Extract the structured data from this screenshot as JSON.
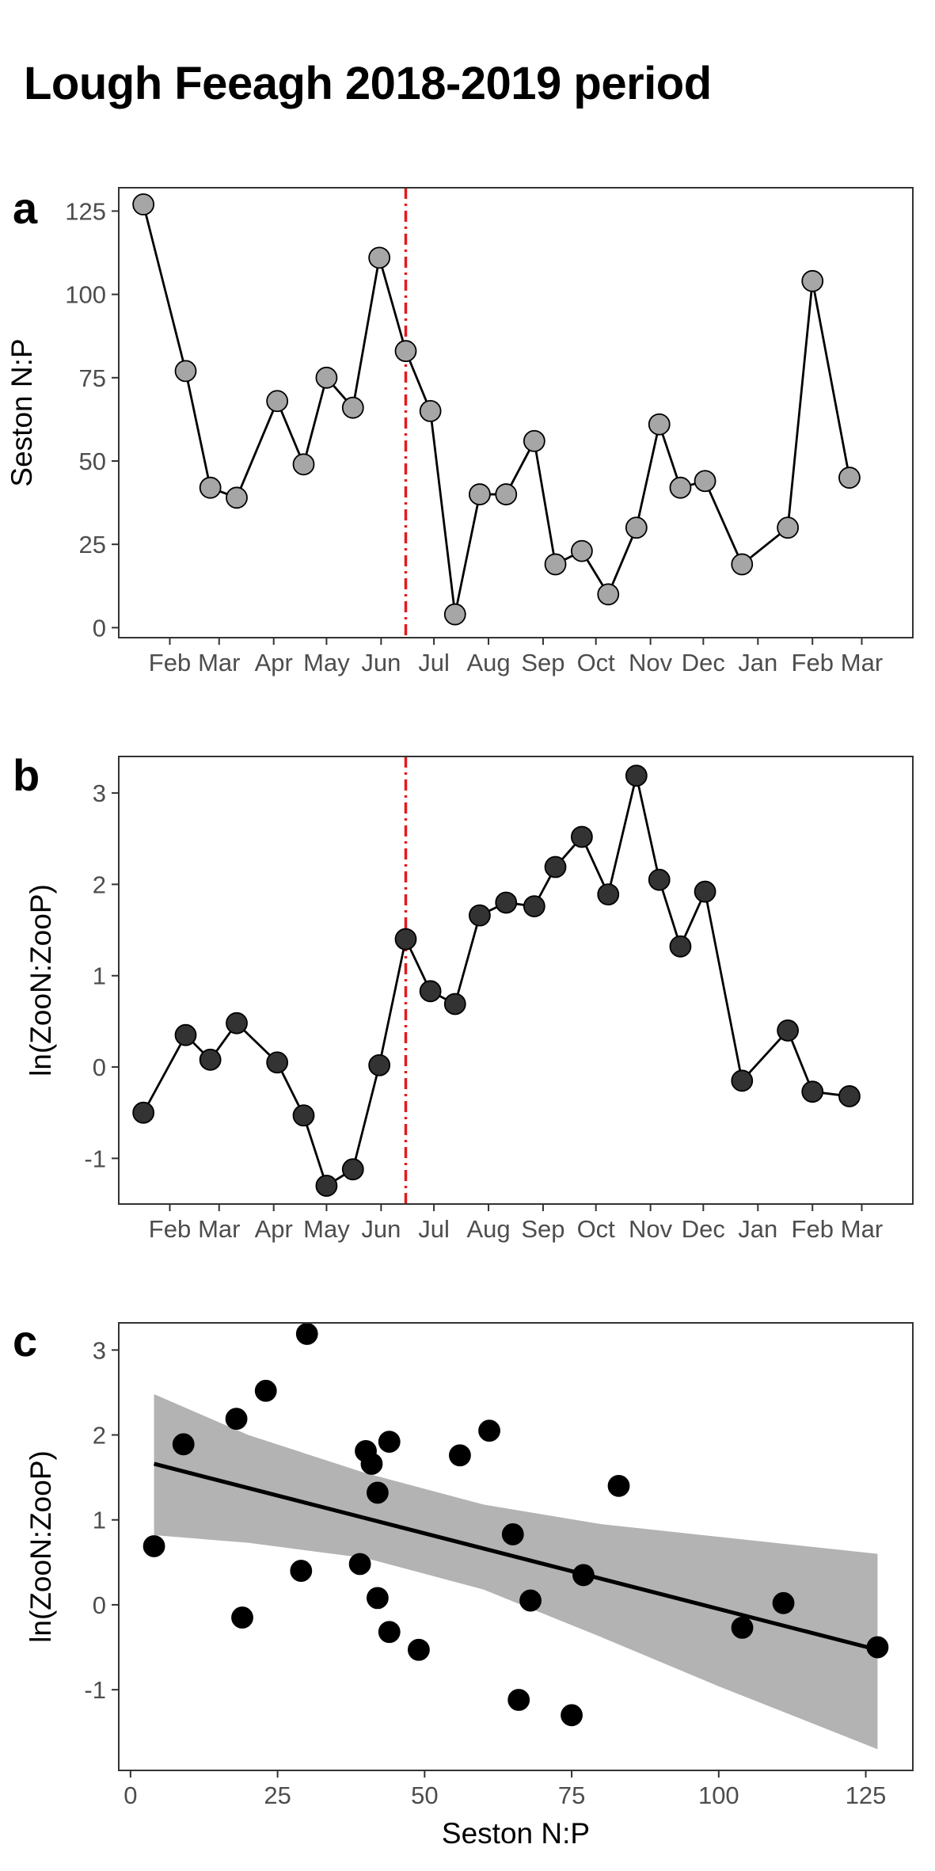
{
  "title": "Lough Feeagh 2018-2019 period",
  "chart_data": [
    {
      "panel": "a",
      "type": "line",
      "ylabel": "Seston N:P",
      "xlabel": "",
      "x_ticks": [
        "Feb",
        "Mar",
        "Apr",
        "May",
        "Jun",
        "Jul",
        "Aug",
        "Sep",
        "Oct",
        "Nov",
        "Dec",
        "Jan",
        "Feb",
        "Mar"
      ],
      "x_tick_dates": [
        "2018-02-01",
        "2018-03-01",
        "2018-04-01",
        "2018-05-01",
        "2018-06-01",
        "2018-07-01",
        "2018-08-01",
        "2018-09-01",
        "2018-10-01",
        "2018-11-01",
        "2018-12-01",
        "2019-01-01",
        "2019-02-01",
        "2019-03-01"
      ],
      "y_ticks": [
        0,
        25,
        50,
        75,
        100,
        125
      ],
      "xlim": [
        "2018-01-03",
        "2019-03-30"
      ],
      "ylim": [
        -3,
        132
      ],
      "vline": {
        "x": "2018-06-15",
        "color": "#e41a1c",
        "style": "dashdot"
      },
      "marker_color": "#a6a6a6",
      "points": [
        {
          "x": "2018-01-17",
          "y": 127
        },
        {
          "x": "2018-02-10",
          "y": 77
        },
        {
          "x": "2018-02-24",
          "y": 42
        },
        {
          "x": "2018-03-11",
          "y": 39
        },
        {
          "x": "2018-04-03",
          "y": 68
        },
        {
          "x": "2018-04-18",
          "y": 49
        },
        {
          "x": "2018-05-01",
          "y": 75
        },
        {
          "x": "2018-05-16",
          "y": 66
        },
        {
          "x": "2018-05-31",
          "y": 111
        },
        {
          "x": "2018-06-15",
          "y": 83
        },
        {
          "x": "2018-06-29",
          "y": 65
        },
        {
          "x": "2018-07-13",
          "y": 4
        },
        {
          "x": "2018-07-27",
          "y": 40
        },
        {
          "x": "2018-08-11",
          "y": 40
        },
        {
          "x": "2018-08-27",
          "y": 56
        },
        {
          "x": "2018-09-08",
          "y": 19
        },
        {
          "x": "2018-09-23",
          "y": 23
        },
        {
          "x": "2018-10-08",
          "y": 10
        },
        {
          "x": "2018-10-24",
          "y": 30
        },
        {
          "x": "2018-11-06",
          "y": 61
        },
        {
          "x": "2018-11-18",
          "y": 42
        },
        {
          "x": "2018-12-02",
          "y": 44
        },
        {
          "x": "2018-12-23",
          "y": 19
        },
        {
          "x": "2019-01-18",
          "y": 30
        },
        {
          "x": "2019-02-01",
          "y": 104
        },
        {
          "x": "2019-02-22",
          "y": 45
        }
      ]
    },
    {
      "panel": "b",
      "type": "line",
      "ylabel": "ln(ZooN:ZooP)",
      "xlabel": "",
      "x_ticks": [
        "Feb",
        "Mar",
        "Apr",
        "May",
        "Jun",
        "Jul",
        "Aug",
        "Sep",
        "Oct",
        "Nov",
        "Dec",
        "Jan",
        "Feb",
        "Mar"
      ],
      "x_tick_dates": [
        "2018-02-01",
        "2018-03-01",
        "2018-04-01",
        "2018-05-01",
        "2018-06-01",
        "2018-07-01",
        "2018-08-01",
        "2018-09-01",
        "2018-10-01",
        "2018-11-01",
        "2018-12-01",
        "2019-01-01",
        "2019-02-01",
        "2019-03-01"
      ],
      "y_ticks": [
        -1,
        0,
        1,
        2,
        3
      ],
      "xlim": [
        "2018-01-03",
        "2019-03-30"
      ],
      "ylim": [
        -1.5,
        3.4
      ],
      "vline": {
        "x": "2018-06-15",
        "color": "#e41a1c",
        "style": "dashdot"
      },
      "marker_color": "#333333",
      "points": [
        {
          "x": "2018-01-17",
          "y": -0.5
        },
        {
          "x": "2018-02-10",
          "y": 0.35
        },
        {
          "x": "2018-02-24",
          "y": 0.08
        },
        {
          "x": "2018-03-11",
          "y": 0.48
        },
        {
          "x": "2018-04-03",
          "y": 0.05
        },
        {
          "x": "2018-04-18",
          "y": -0.53
        },
        {
          "x": "2018-05-01",
          "y": -1.3
        },
        {
          "x": "2018-05-16",
          "y": -1.12
        },
        {
          "x": "2018-05-31",
          "y": 0.02
        },
        {
          "x": "2018-06-15",
          "y": 1.4
        },
        {
          "x": "2018-06-29",
          "y": 0.83
        },
        {
          "x": "2018-07-13",
          "y": 0.69
        },
        {
          "x": "2018-07-27",
          "y": 1.66
        },
        {
          "x": "2018-08-11",
          "y": 1.8
        },
        {
          "x": "2018-08-27",
          "y": 1.76
        },
        {
          "x": "2018-09-08",
          "y": 2.19
        },
        {
          "x": "2018-09-23",
          "y": 2.52
        },
        {
          "x": "2018-10-08",
          "y": 1.89
        },
        {
          "x": "2018-10-24",
          "y": 3.19
        },
        {
          "x": "2018-11-06",
          "y": 2.05
        },
        {
          "x": "2018-11-18",
          "y": 1.32
        },
        {
          "x": "2018-12-02",
          "y": 1.92
        },
        {
          "x": "2018-12-23",
          "y": -0.15
        },
        {
          "x": "2019-01-18",
          "y": 0.4
        },
        {
          "x": "2019-02-01",
          "y": -0.27
        },
        {
          "x": "2019-02-22",
          "y": -0.32
        }
      ]
    },
    {
      "panel": "c",
      "type": "scatter",
      "xlabel": "Seston N:P",
      "ylabel": "ln(ZooN:ZooP)",
      "x_ticks": [
        0,
        25,
        50,
        75,
        100,
        125
      ],
      "y_ticks": [
        -1,
        0,
        1,
        2,
        3
      ],
      "xlim": [
        -2,
        133
      ],
      "ylim": [
        -1.95,
        3.32
      ],
      "marker_color": "#000000",
      "points": [
        {
          "x": 127,
          "y": -0.5
        },
        {
          "x": 77,
          "y": 0.35
        },
        {
          "x": 42,
          "y": 0.08
        },
        {
          "x": 39,
          "y": 0.48
        },
        {
          "x": 68,
          "y": 0.05
        },
        {
          "x": 49,
          "y": -0.53
        },
        {
          "x": 75,
          "y": -1.3
        },
        {
          "x": 66,
          "y": -1.12
        },
        {
          "x": 111,
          "y": 0.02
        },
        {
          "x": 83,
          "y": 1.4
        },
        {
          "x": 65,
          "y": 0.83
        },
        {
          "x": 4,
          "y": 0.69
        },
        {
          "x": 40,
          "y": 1.81
        },
        {
          "x": 41,
          "y": 1.66
        },
        {
          "x": 56,
          "y": 1.76
        },
        {
          "x": 18,
          "y": 2.19
        },
        {
          "x": 23,
          "y": 2.52
        },
        {
          "x": 9,
          "y": 1.89
        },
        {
          "x": 30,
          "y": 3.19
        },
        {
          "x": 61,
          "y": 2.05
        },
        {
          "x": 42,
          "y": 1.32
        },
        {
          "x": 44,
          "y": 1.92
        },
        {
          "x": 19,
          "y": -0.15
        },
        {
          "x": 29,
          "y": 0.4
        },
        {
          "x": 104,
          "y": -0.27
        },
        {
          "x": 44,
          "y": -0.32
        }
      ],
      "fit": {
        "x": [
          4,
          127
        ],
        "y": [
          1.66,
          -0.53
        ],
        "color": "#000000"
      },
      "band": {
        "x": [
          4,
          20,
          40,
          60,
          80,
          100,
          127
        ],
        "upper": [
          2.48,
          2.0,
          1.55,
          1.18,
          0.95,
          0.8,
          0.6
        ],
        "lower": [
          0.82,
          0.73,
          0.55,
          0.18,
          -0.38,
          -0.96,
          -1.7
        ],
        "color": "#b3b3b3"
      }
    }
  ]
}
